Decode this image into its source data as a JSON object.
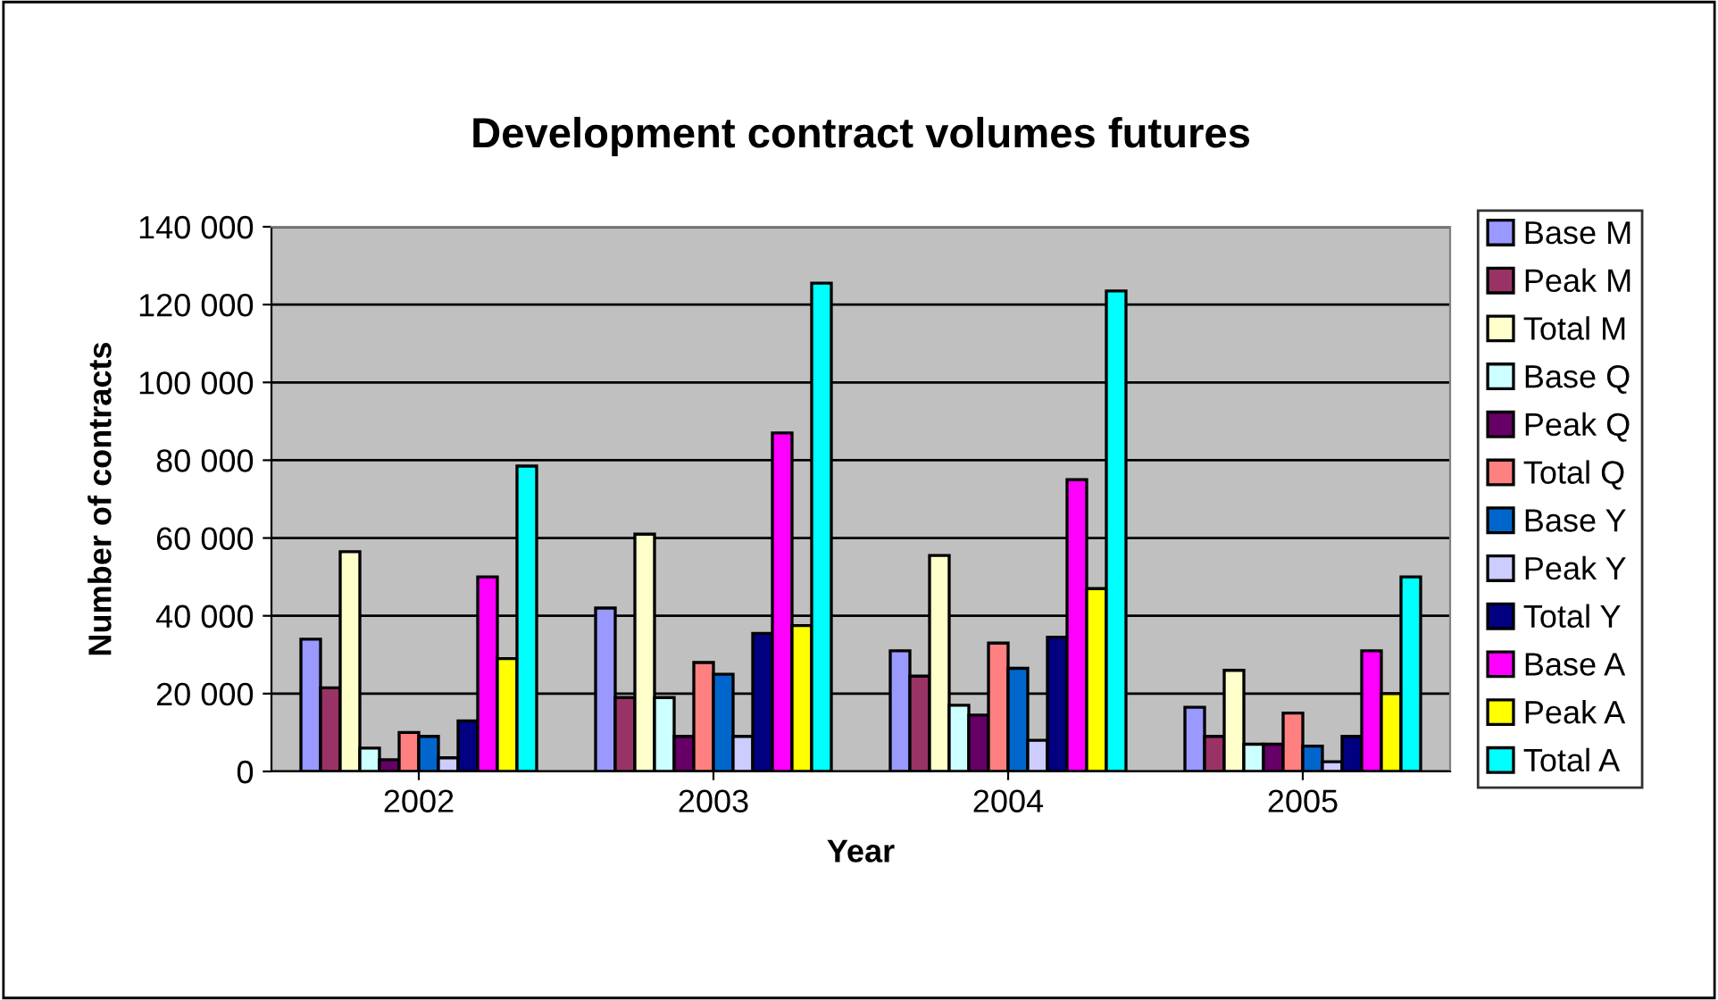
{
  "chart_data": {
    "type": "bar",
    "title": "Development contract volumes futures",
    "xlabel": "Year",
    "ylabel": "Number of contracts",
    "categories": [
      "2002",
      "2003",
      "2004",
      "2005"
    ],
    "series": [
      {
        "name": "Base M",
        "color": "#9999ff",
        "values": [
          34000,
          42000,
          31000,
          16500
        ]
      },
      {
        "name": "Peak M",
        "color": "#993366",
        "values": [
          21500,
          19000,
          24500,
          9000
        ]
      },
      {
        "name": "Total M",
        "color": "#ffffcc",
        "values": [
          56500,
          61000,
          55500,
          26000
        ]
      },
      {
        "name": "Base Q",
        "color": "#ccffff",
        "values": [
          6000,
          19000,
          17000,
          7000
        ]
      },
      {
        "name": "Peak Q",
        "color": "#660066",
        "values": [
          3000,
          9000,
          14500,
          7000
        ]
      },
      {
        "name": "Total Q",
        "color": "#ff8080",
        "values": [
          10000,
          28000,
          33000,
          15000
        ]
      },
      {
        "name": "Base Y",
        "color": "#0066cc",
        "values": [
          9000,
          25000,
          26500,
          6500
        ]
      },
      {
        "name": "Peak Y",
        "color": "#ccccff",
        "values": [
          3500,
          9000,
          8000,
          2500
        ]
      },
      {
        "name": "Total Y",
        "color": "#000080",
        "values": [
          13000,
          35500,
          34500,
          9000
        ]
      },
      {
        "name": "Base A",
        "color": "#ff00ff",
        "values": [
          50000,
          87000,
          75000,
          31000
        ]
      },
      {
        "name": "Peak A",
        "color": "#ffff00",
        "values": [
          29000,
          37500,
          47000,
          20000
        ]
      },
      {
        "name": "Total A",
        "color": "#00ffff",
        "values": [
          78500,
          125500,
          123500,
          50000
        ]
      }
    ],
    "ylim": [
      0,
      140000
    ],
    "yticks": [
      0,
      {
        "value": 20000,
        "label": "20 000"
      },
      {
        "value": 40000,
        "label": "40 000"
      },
      {
        "value": 60000,
        "label": "60 000"
      },
      {
        "value": 80000,
        "label": "80 000"
      },
      {
        "value": 100000,
        "label": "100 000"
      },
      {
        "value": 120000,
        "label": "120 000"
      },
      {
        "value": 140000,
        "label": "140 000"
      }
    ],
    "grid": "y",
    "legend": "right"
  }
}
